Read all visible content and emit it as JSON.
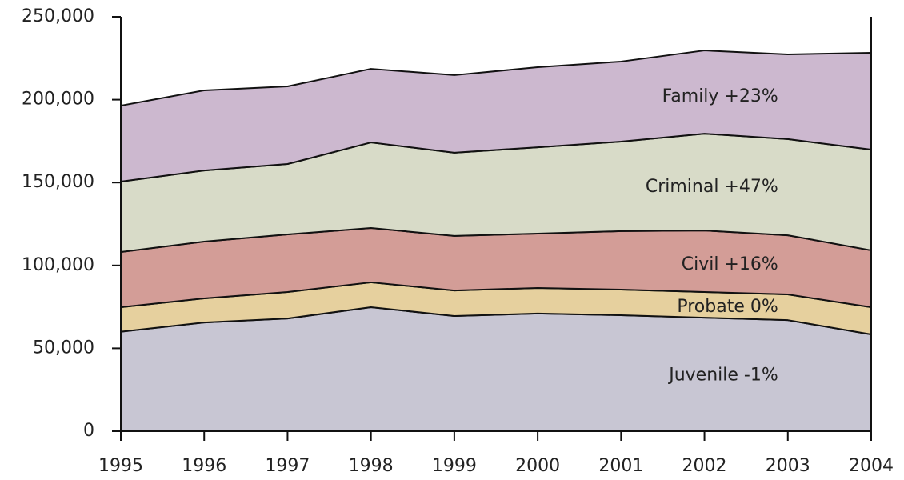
{
  "chart_data": {
    "type": "stacked_area",
    "x": [
      1995,
      1996,
      1997,
      1998,
      1999,
      2000,
      2001,
      2002,
      2003,
      2004
    ],
    "xlim": [
      1995,
      2004
    ],
    "xticks": [
      1995,
      1996,
      1997,
      1998,
      1999,
      2000,
      2001,
      2002,
      2003,
      2004
    ],
    "ylim": [
      0,
      250000
    ],
    "yticks": [
      0,
      {
        "value": 50000,
        "label": "50,000"
      },
      {
        "value": 100000,
        "label": "100,000"
      },
      {
        "value": 150000,
        "label": "150,000"
      },
      {
        "value": 200000,
        "label": "200,000"
      },
      {
        "value": 250000,
        "label": "250,000"
      }
    ],
    "series": [
      {
        "name": "Juvenile -1%",
        "color": "#c8c6d3",
        "values": [
          60000,
          65600,
          68000,
          74800,
          69500,
          71000,
          70000,
          68500,
          67000,
          58400
        ]
      },
      {
        "name": "Probate 0%",
        "color": "#e6d09e",
        "values": [
          14800,
          14500,
          16000,
          15000,
          15400,
          15400,
          15400,
          15500,
          15500,
          16400
        ]
      },
      {
        "name": "Civil +16%",
        "color": "#d39d97",
        "values": [
          33300,
          34300,
          34700,
          32800,
          32900,
          32800,
          35300,
          37100,
          35700,
          34300
        ]
      },
      {
        "name": "Criminal +47%",
        "color": "#d8dbc8",
        "values": [
          42500,
          42900,
          42500,
          51600,
          50200,
          52100,
          54000,
          58400,
          58000,
          60800
        ]
      },
      {
        "name": "Family +23%",
        "color": "#ccb8cf",
        "values": [
          45800,
          48300,
          46800,
          44400,
          46800,
          48300,
          48300,
          50200,
          51100,
          58400
        ]
      }
    ]
  }
}
